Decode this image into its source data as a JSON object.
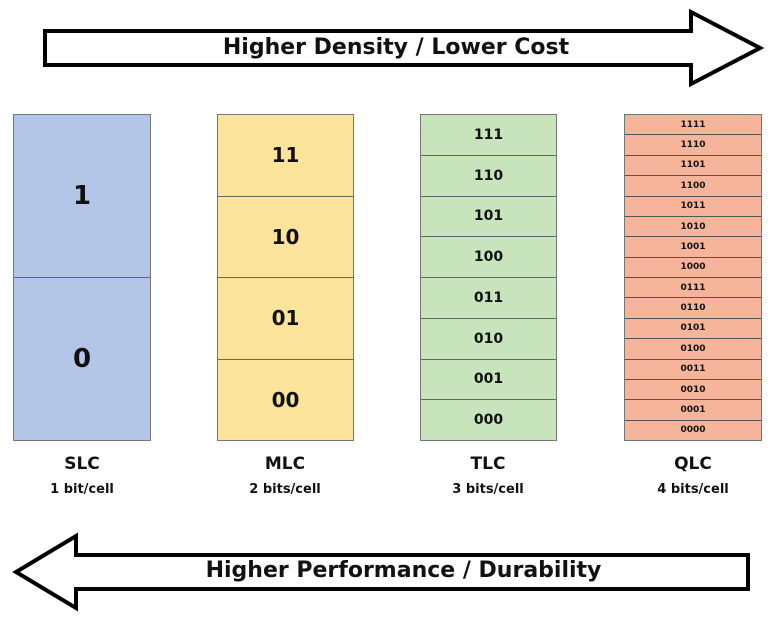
{
  "top_arrow": {
    "label": "Higher Density / Lower Cost",
    "direction": "right"
  },
  "bottom_arrow": {
    "label": "Higher Performance / Durability",
    "direction": "left"
  },
  "cell_types": [
    {
      "name": "SLC",
      "bits_label": "1 bit/cell",
      "color": "#b3c6e7",
      "levels": [
        "1",
        "0"
      ]
    },
    {
      "name": "MLC",
      "bits_label": "2 bits/cell",
      "color": "#fde49c",
      "levels": [
        "11",
        "10",
        "01",
        "00"
      ]
    },
    {
      "name": "TLC",
      "bits_label": "3 bits/cell",
      "color": "#c8e4bc",
      "levels": [
        "111",
        "110",
        "101",
        "100",
        "011",
        "010",
        "001",
        "000"
      ]
    },
    {
      "name": "QLC",
      "bits_label": "4 bits/cell",
      "color": "#f6b59a",
      "levels": [
        "1111",
        "1110",
        "1101",
        "1100",
        "1011",
        "1010",
        "1001",
        "1000",
        "0111",
        "0110",
        "0101",
        "0100",
        "0011",
        "0010",
        "0001",
        "0000"
      ]
    }
  ]
}
